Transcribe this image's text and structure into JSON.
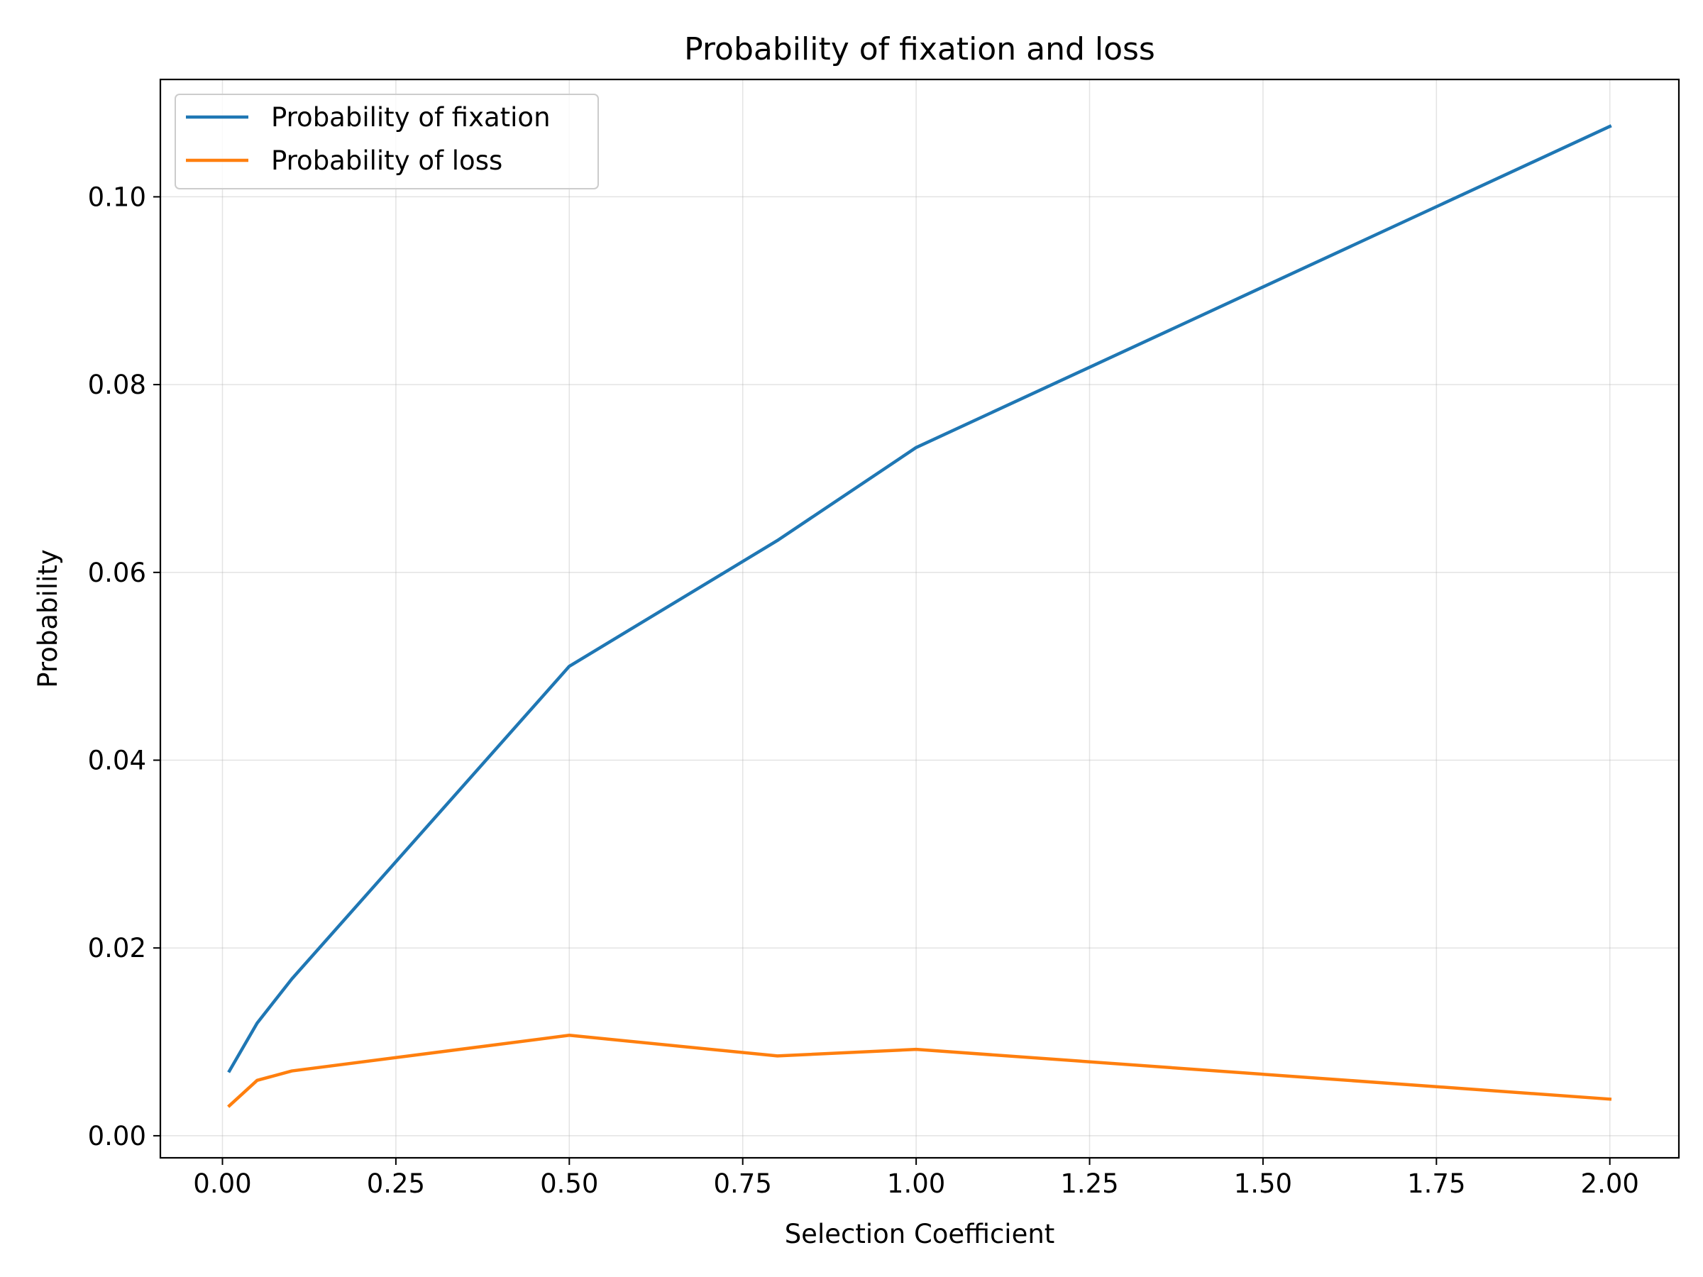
{
  "chart_data": {
    "type": "line",
    "title": "Probability of fixation and loss",
    "xlabel": "Selection Coefficient",
    "ylabel": "Probability",
    "xlim": [
      -0.0895,
      2.0995
    ],
    "ylim": [
      -0.00235,
      0.1125
    ],
    "xticks": [
      0.0,
      0.25,
      0.5,
      0.75,
      1.0,
      1.25,
      1.5,
      1.75,
      2.0
    ],
    "xtick_labels": [
      "0.00",
      "0.25",
      "0.50",
      "0.75",
      "1.00",
      "1.25",
      "1.50",
      "1.75",
      "2.00"
    ],
    "yticks": [
      0.0,
      0.02,
      0.04,
      0.06,
      0.08,
      0.1
    ],
    "ytick_labels": [
      "0.00",
      "0.02",
      "0.04",
      "0.06",
      "0.08",
      "0.10"
    ],
    "grid": true,
    "legend_position": "top-left",
    "x": [
      0.01,
      0.05,
      0.1,
      0.5,
      0.8,
      1.0,
      2.0
    ],
    "series": [
      {
        "name": "Probability of fixation",
        "color": "#1f77b4",
        "values": [
          0.0069,
          0.012,
          0.0167,
          0.05,
          0.0634,
          0.0733,
          0.1075
        ]
      },
      {
        "name": "Probability of loss",
        "color": "#ff7f0e",
        "values": [
          0.0032,
          0.0059,
          0.0069,
          0.0107,
          0.0085,
          0.0092,
          0.0039
        ]
      }
    ]
  }
}
